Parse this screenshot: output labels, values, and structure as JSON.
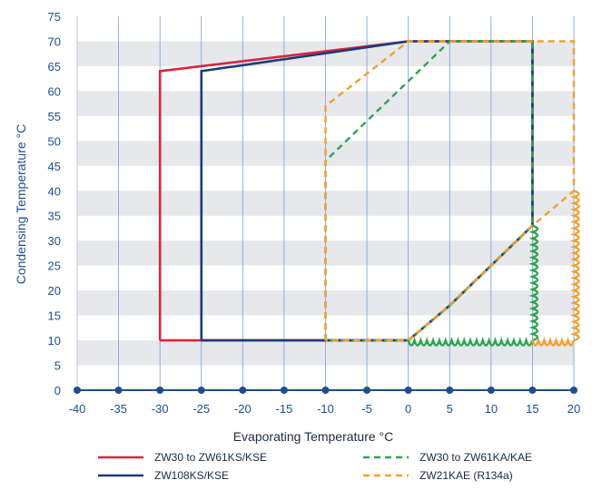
{
  "chart_data": {
    "type": "line",
    "xlabel": "Evaporating Temperature °C",
    "ylabel": "Condensing Temperature °C",
    "xlim": [
      -40,
      20
    ],
    "ylim": [
      0,
      75
    ],
    "x_ticks": [
      -40,
      -35,
      -30,
      -25,
      -20,
      -15,
      -10,
      -5,
      0,
      5,
      10,
      15,
      20
    ],
    "y_ticks": [
      0,
      5,
      10,
      15,
      20,
      25,
      30,
      35,
      40,
      45,
      50,
      55,
      60,
      65,
      70,
      75
    ],
    "grid": true,
    "banded_background": true,
    "legend_position": "bottom",
    "series": [
      {
        "name": "ZW30 to ZW61KS/KSE",
        "color": "#d7263d",
        "dash": "solid",
        "points": [
          [
            -30,
            10
          ],
          [
            -30,
            64
          ],
          [
            0,
            70
          ],
          [
            15,
            70
          ],
          [
            15,
            33
          ],
          [
            10,
            25
          ],
          [
            5,
            17
          ],
          [
            0,
            10
          ],
          [
            -30,
            10
          ]
        ]
      },
      {
        "name": "ZW108KS/KSE",
        "color": "#1c3a7a",
        "dash": "solid",
        "points": [
          [
            -25,
            10
          ],
          [
            -25,
            64
          ],
          [
            0,
            70
          ],
          [
            15,
            70
          ],
          [
            15,
            33
          ],
          [
            10,
            25
          ],
          [
            5,
            17
          ],
          [
            0,
            10
          ],
          [
            -25,
            10
          ]
        ]
      },
      {
        "name": "ZW30 to ZW61KA/KAE",
        "color": "#2ea44f",
        "dash": "dashed",
        "points": [
          [
            -10,
            10
          ],
          [
            -10,
            46
          ],
          [
            5,
            70
          ],
          [
            15,
            70
          ],
          [
            15,
            33
          ],
          [
            10,
            25
          ],
          [
            5,
            17
          ],
          [
            0,
            10
          ],
          [
            -10,
            10
          ]
        ]
      },
      {
        "name": "ZW21KAE (R134a)",
        "color": "#f2a12e",
        "dash": "dashed",
        "points": [
          [
            -10,
            10
          ],
          [
            -10,
            57
          ],
          [
            0,
            70
          ],
          [
            20,
            70
          ],
          [
            20,
            40
          ],
          [
            15,
            33
          ],
          [
            10,
            25
          ],
          [
            5,
            17
          ],
          [
            0,
            10
          ],
          [
            -10,
            10
          ]
        ]
      }
    ],
    "coil_annotations": [
      {
        "color": "#2ea44f",
        "from": [
          0,
          10
        ],
        "to": [
          15,
          10
        ]
      },
      {
        "color": "#2ea44f",
        "from": [
          15,
          10
        ],
        "to": [
          15,
          33
        ]
      },
      {
        "color": "#f2a12e",
        "from": [
          15,
          10
        ],
        "to": [
          20,
          10
        ]
      },
      {
        "color": "#f2a12e",
        "from": [
          20,
          10
        ],
        "to": [
          20,
          40
        ]
      }
    ]
  }
}
